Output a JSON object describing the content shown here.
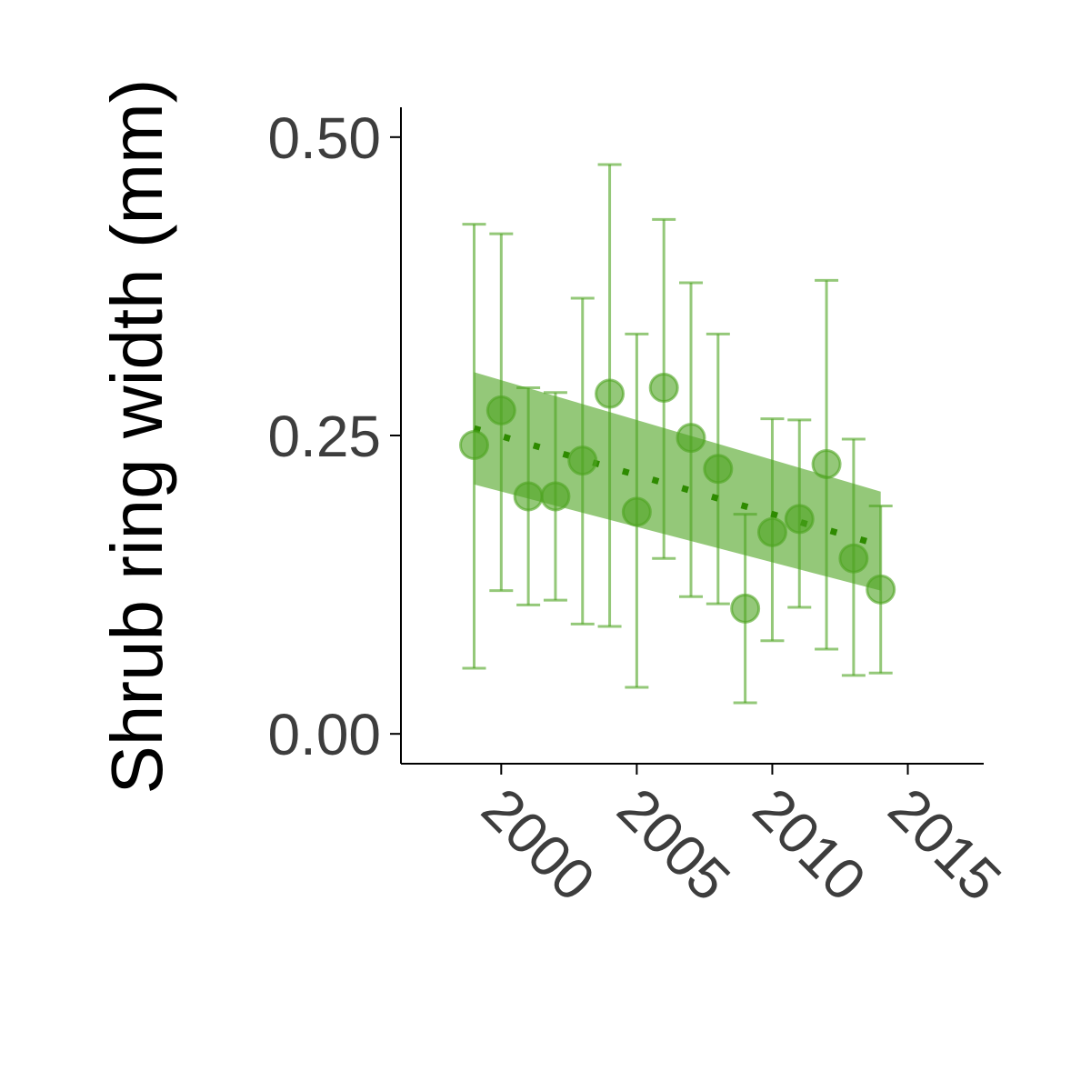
{
  "chart_data": {
    "type": "scatter",
    "title": "",
    "xlabel": "",
    "ylabel": "Shrub ring width (mm)",
    "xlim": [
      1996.3,
      2017.8
    ],
    "ylim": [
      -0.025,
      0.525
    ],
    "x_ticks": [
      2000,
      2005,
      2010,
      2015
    ],
    "x_tick_labels": [
      "2000",
      "2005",
      "2010",
      "2015"
    ],
    "y_ticks": [
      0,
      0.25,
      0.5
    ],
    "y_tick_labels": [
      "0.00",
      "0.25",
      "0.50"
    ],
    "grid": false,
    "legend": "none",
    "colors": {
      "points": "#4da31f",
      "errorbars": "#4da31f",
      "ribbon": "#4da31f",
      "trend_line": "#2e8b00",
      "axis": "#000000",
      "tick_text": "#3d3d3d"
    },
    "series": [
      {
        "x": [
          1999,
          2000,
          2001,
          2002,
          2003,
          2004,
          2005,
          2006,
          2007,
          2008,
          2009,
          2010,
          2011,
          2012,
          2013,
          2014
        ],
        "y": [
          0.242,
          0.271,
          0.199,
          0.199,
          0.229,
          0.285,
          0.186,
          0.29,
          0.248,
          0.222,
          0.105,
          0.169,
          0.18,
          0.226,
          0.147,
          0.121
        ],
        "y_lower": [
          0.055,
          0.12,
          0.108,
          0.112,
          0.092,
          0.09,
          0.039,
          0.147,
          0.115,
          0.109,
          0.026,
          0.078,
          0.106,
          0.071,
          0.049,
          0.051
        ],
        "y_upper": [
          0.427,
          0.419,
          0.29,
          0.286,
          0.365,
          0.477,
          0.335,
          0.431,
          0.378,
          0.335,
          0.184,
          0.264,
          0.263,
          0.38,
          0.247,
          0.191
        ]
      }
    ],
    "trend": {
      "style": "dotted",
      "x": [
        1999,
        2014
      ],
      "y": [
        0.256,
        0.158
      ],
      "ci_lower": [
        0.209,
        0.12
      ],
      "ci_upper": [
        0.303,
        0.203
      ]
    }
  }
}
